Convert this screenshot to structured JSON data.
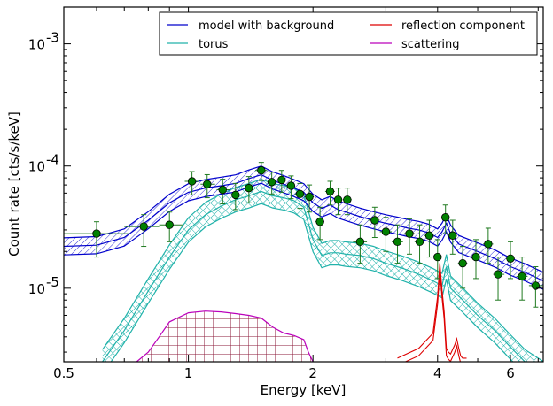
{
  "chart_data": {
    "type": "line",
    "title": "",
    "xlabel": "Energy [keV]",
    "ylabel": "Count rate [cts/s/keV]",
    "xscale": "log",
    "yscale": "log",
    "xlim": [
      0.5,
      7.2
    ],
    "ylim": [
      2.5e-06,
      0.002
    ],
    "xticks": [
      {
        "value": 0.5,
        "label": "0.5"
      },
      {
        "value": 1,
        "label": "1"
      },
      {
        "value": 2,
        "label": "2"
      },
      {
        "value": 4,
        "label": "4"
      },
      {
        "value": 6,
        "label": "6"
      }
    ],
    "yticks": [
      {
        "value": 1e-05,
        "base": "10",
        "exp": "-5"
      },
      {
        "value": 0.0001,
        "base": "10",
        "exp": "-4"
      },
      {
        "value": 0.001,
        "base": "10",
        "exp": "-3"
      }
    ],
    "legend": {
      "placement": "top-right",
      "entries": [
        {
          "label": "model with background",
          "color": "#0000cc"
        },
        {
          "label": "reflection component",
          "color": "#dd0000"
        },
        {
          "label": "torus",
          "color": "#20b2aa"
        },
        {
          "label": "scattering",
          "color": "#bb00bb"
        }
      ]
    },
    "colors": {
      "model": "#0000cc",
      "torus": "#20b2aa",
      "reflection": "#dd0000",
      "scattering": "#bb00bb",
      "scattering_grid": "#8b1a3a",
      "data": "#008000",
      "errorbar": "#207a20"
    },
    "series": [
      {
        "name": "model with background",
        "x": [
          0.5,
          0.6,
          0.7,
          0.8,
          0.9,
          1.0,
          1.1,
          1.2,
          1.3,
          1.4,
          1.5,
          1.6,
          1.7,
          1.8,
          1.9,
          2.0,
          2.1,
          2.2,
          2.3,
          2.4,
          2.6,
          2.8,
          3.0,
          3.2,
          3.4,
          3.6,
          3.8,
          4.0,
          4.1,
          4.2,
          4.3,
          4.5,
          5.0,
          5.5,
          6.0,
          6.5,
          7.2
        ],
        "y": [
          2.2e-05,
          2.25e-05,
          2.6e-05,
          3.6e-05,
          5e-05,
          6.1e-05,
          6.6e-05,
          6.9e-05,
          7.2e-05,
          7.9e-05,
          8.5e-05,
          7.6e-05,
          7.1e-05,
          6.6e-05,
          6.1e-05,
          5e-05,
          4.5e-05,
          4.8e-05,
          4.4e-05,
          4.2e-05,
          3.85e-05,
          3.6e-05,
          3.4e-05,
          3.25e-05,
          3.1e-05,
          3e-05,
          2.85e-05,
          2.6e-05,
          2.9e-05,
          3.4e-05,
          2.8e-05,
          2.3e-05,
          2e-05,
          1.75e-05,
          1.5e-05,
          1.35e-05,
          1.15e-05
        ],
        "band": 0.07
      },
      {
        "name": "torus",
        "x": [
          0.62,
          0.7,
          0.8,
          0.9,
          1.0,
          1.1,
          1.2,
          1.3,
          1.4,
          1.5,
          1.6,
          1.7,
          1.8,
          1.9,
          2.0,
          2.1,
          2.2,
          2.3,
          2.4,
          2.6,
          2.8,
          3.0,
          3.3,
          3.6,
          3.9,
          4.1,
          4.2,
          4.3,
          4.6,
          5.0,
          5.5,
          6.0,
          6.5,
          7.2
        ],
        "y": [
          2.5e-06,
          4.5e-06,
          9.5e-06,
          1.8e-05,
          3e-05,
          4e-05,
          4.7e-05,
          5.3e-05,
          5.7e-05,
          6.2e-05,
          5.7e-05,
          5.5e-05,
          5.2e-05,
          4.6e-05,
          2.5e-05,
          1.85e-05,
          1.95e-05,
          1.95e-05,
          1.9e-05,
          1.85e-05,
          1.75e-05,
          1.6e-05,
          1.45e-05,
          1.3e-05,
          1.15e-05,
          1.05e-05,
          1.5e-05,
          1e-05,
          8e-06,
          6e-06,
          4.5e-06,
          3.3e-06,
          2.5e-06,
          2e-06
        ],
        "band": 0.1
      },
      {
        "name": "reflection component",
        "x": [
          3.2,
          3.6,
          3.9,
          4.0,
          4.05,
          4.1,
          4.15,
          4.2,
          4.25,
          4.3,
          4.4,
          4.45,
          4.5,
          4.55,
          4.6,
          4.7
        ],
        "y": [
          2.5e-06,
          3e-06,
          4e-06,
          8e-06,
          1.5e-05,
          9e-06,
          6e-06,
          3e-06,
          2.8e-06,
          2.7e-06,
          3.2e-06,
          3.6e-06,
          3e-06,
          2.6e-06,
          2.5e-06,
          2.5e-06
        ],
        "band": 0.03
      },
      {
        "name": "scattering",
        "x": [
          0.75,
          0.8,
          0.85,
          0.9,
          1.0,
          1.1,
          1.2,
          1.3,
          1.4,
          1.5,
          1.6,
          1.7,
          1.8,
          1.9,
          1.95,
          2.0
        ],
        "y": [
          2.5e-06,
          3e-06,
          4e-06,
          5.3e-06,
          6.3e-06,
          6.5e-06,
          6.4e-06,
          6.2e-06,
          6e-06,
          5.7e-06,
          4.8e-06,
          4.3e-06,
          4.1e-06,
          3.8e-06,
          3e-06,
          2.5e-06
        ]
      },
      {
        "name": "data",
        "points": [
          {
            "x": 0.6,
            "y": 2.8e-05,
            "xlo": 0.5,
            "xhi": 0.72,
            "ylo": 1.8e-05,
            "yhi": 3.5e-05
          },
          {
            "x": 0.78,
            "y": 3.2e-05,
            "xlo": 0.7,
            "xhi": 0.85,
            "ylo": 2.2e-05,
            "yhi": 4e-05
          },
          {
            "x": 0.9,
            "y": 3.3e-05,
            "xlo": 0.85,
            "xhi": 0.97,
            "ylo": 2.4e-05,
            "yhi": 4.2e-05
          },
          {
            "x": 1.02,
            "y": 7.5e-05,
            "xlo": 0.98,
            "xhi": 1.06,
            "ylo": 5.8e-05,
            "yhi": 9e-05
          },
          {
            "x": 1.11,
            "y": 7.1e-05,
            "xlo": 1.07,
            "xhi": 1.16,
            "ylo": 5.5e-05,
            "yhi": 8.5e-05
          },
          {
            "x": 1.21,
            "y": 6.4e-05,
            "xlo": 1.17,
            "xhi": 1.26,
            "ylo": 4.9e-05,
            "yhi": 7.8e-05
          },
          {
            "x": 1.3,
            "y": 5.8e-05,
            "xlo": 1.26,
            "xhi": 1.35,
            "ylo": 4.4e-05,
            "yhi": 7.2e-05
          },
          {
            "x": 1.4,
            "y": 6.6e-05,
            "xlo": 1.35,
            "xhi": 1.45,
            "ylo": 5e-05,
            "yhi": 8.2e-05
          },
          {
            "x": 1.5,
            "y": 9.2e-05,
            "xlo": 1.45,
            "xhi": 1.55,
            "ylo": 7.6e-05,
            "yhi": 0.000107
          },
          {
            "x": 1.59,
            "y": 7.4e-05,
            "xlo": 1.55,
            "xhi": 1.63,
            "ylo": 5.9e-05,
            "yhi": 8.9e-05
          },
          {
            "x": 1.68,
            "y": 7.7e-05,
            "xlo": 1.63,
            "xhi": 1.72,
            "ylo": 6.1e-05,
            "yhi": 9.2e-05
          },
          {
            "x": 1.77,
            "y": 6.9e-05,
            "xlo": 1.72,
            "xhi": 1.81,
            "ylo": 5.4e-05,
            "yhi": 8.3e-05
          },
          {
            "x": 1.86,
            "y": 5.9e-05,
            "xlo": 1.81,
            "xhi": 1.91,
            "ylo": 4.5e-05,
            "yhi": 7.2e-05
          },
          {
            "x": 1.96,
            "y": 5.6e-05,
            "xlo": 1.91,
            "xhi": 2.01,
            "ylo": 4.2e-05,
            "yhi": 7e-05
          },
          {
            "x": 2.08,
            "y": 3.5e-05,
            "xlo": 2.02,
            "xhi": 2.13,
            "ylo": 2.5e-05,
            "yhi": 4.6e-05
          },
          {
            "x": 2.2,
            "y": 6.2e-05,
            "xlo": 2.14,
            "xhi": 2.26,
            "ylo": 4.8e-05,
            "yhi": 7.5e-05
          },
          {
            "x": 2.3,
            "y": 5.3e-05,
            "xlo": 2.26,
            "xhi": 2.35,
            "ylo": 4e-05,
            "yhi": 6.6e-05
          },
          {
            "x": 2.42,
            "y": 5.3e-05,
            "xlo": 2.36,
            "xhi": 2.48,
            "ylo": 4e-05,
            "yhi": 6.6e-05
          },
          {
            "x": 2.6,
            "y": 2.4e-05,
            "xlo": 2.5,
            "xhi": 2.7,
            "ylo": 1.6e-05,
            "yhi": 3.3e-05
          },
          {
            "x": 2.82,
            "y": 3.6e-05,
            "xlo": 2.72,
            "xhi": 2.9,
            "ylo": 2.6e-05,
            "yhi": 4.6e-05
          },
          {
            "x": 3.0,
            "y": 2.9e-05,
            "xlo": 2.9,
            "xhi": 3.1,
            "ylo": 2e-05,
            "yhi": 3.8e-05
          },
          {
            "x": 3.2,
            "y": 2.4e-05,
            "xlo": 3.1,
            "xhi": 3.3,
            "ylo": 1.6e-05,
            "yhi": 3.3e-05
          },
          {
            "x": 3.42,
            "y": 2.8e-05,
            "xlo": 3.32,
            "xhi": 3.52,
            "ylo": 1.9e-05,
            "yhi": 3.7e-05
          },
          {
            "x": 3.62,
            "y": 2.4e-05,
            "xlo": 3.52,
            "xhi": 3.72,
            "ylo": 1.6e-05,
            "yhi": 3.3e-05
          },
          {
            "x": 3.82,
            "y": 2.7e-05,
            "xlo": 3.72,
            "xhi": 3.92,
            "ylo": 1.8e-05,
            "yhi": 3.6e-05
          },
          {
            "x": 4.0,
            "y": 1.8e-05,
            "xlo": 3.94,
            "xhi": 4.06,
            "ylo": 1.2e-05,
            "yhi": 2.5e-05
          },
          {
            "x": 4.18,
            "y": 3.8e-05,
            "xlo": 4.1,
            "xhi": 4.25,
            "ylo": 2.8e-05,
            "yhi": 4.8e-05
          },
          {
            "x": 4.35,
            "y": 2.7e-05,
            "xlo": 4.27,
            "xhi": 4.43,
            "ylo": 1.9e-05,
            "yhi": 3.6e-05
          },
          {
            "x": 4.6,
            "y": 1.6e-05,
            "xlo": 4.48,
            "xhi": 4.72,
            "ylo": 1e-05,
            "yhi": 2.2e-05
          },
          {
            "x": 4.95,
            "y": 1.8e-05,
            "xlo": 4.8,
            "xhi": 5.1,
            "ylo": 1.2e-05,
            "yhi": 2.5e-05
          },
          {
            "x": 5.3,
            "y": 2.3e-05,
            "xlo": 5.15,
            "xhi": 5.45,
            "ylo": 1.6e-05,
            "yhi": 3.1e-05
          },
          {
            "x": 5.6,
            "y": 1.3e-05,
            "xlo": 5.45,
            "xhi": 5.8,
            "ylo": 8e-06,
            "yhi": 1.8e-05
          },
          {
            "x": 6.0,
            "y": 1.75e-05,
            "xlo": 5.85,
            "xhi": 6.15,
            "ylo": 1.2e-05,
            "yhi": 2.4e-05
          },
          {
            "x": 6.4,
            "y": 1.25e-05,
            "xlo": 6.2,
            "xhi": 6.6,
            "ylo": 8e-06,
            "yhi": 1.8e-05
          },
          {
            "x": 6.9,
            "y": 1.05e-05,
            "xlo": 6.65,
            "xhi": 7.2,
            "ylo": 7e-06,
            "yhi": 1.5e-05
          }
        ]
      }
    ]
  }
}
